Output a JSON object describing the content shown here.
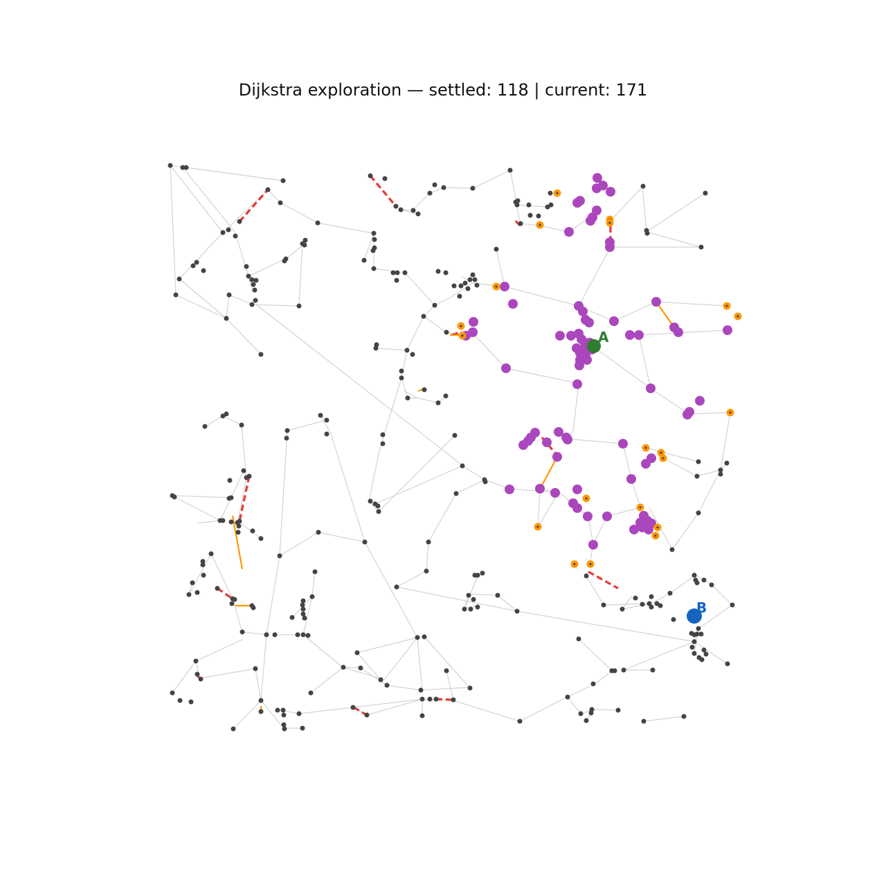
{
  "title": "Dijkstra exploration — settled: 118 | current: 171",
  "labels": {
    "start": "A",
    "target": "B"
  },
  "colors": {
    "edge": "#d3d3d3",
    "node": "#444444",
    "settled": "#ab47bc",
    "frontier": "#ff9800",
    "frontier_edge": "#ff9800",
    "current_edge": "#e53935",
    "start": "#2e7d32",
    "target": "#1565c0",
    "label_a": "#2e7d32",
    "label_b": "#1565c0"
  }
}
